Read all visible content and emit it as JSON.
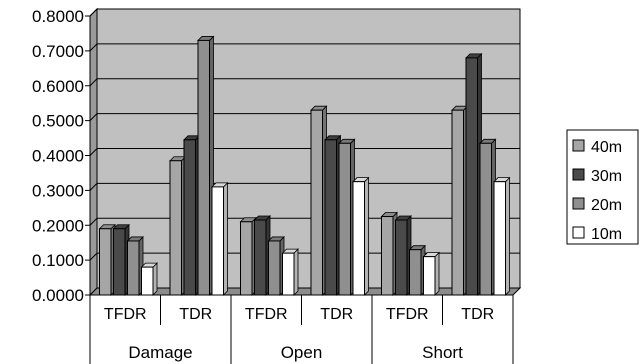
{
  "chart_data": {
    "type": "bar",
    "title": "",
    "xlabel": "",
    "ylabel": "",
    "ylim": [
      0,
      0.8
    ],
    "y_ticks": [
      "0.0000",
      "0.1000",
      "0.2000",
      "0.3000",
      "0.4000",
      "0.5000",
      "0.6000",
      "0.7000",
      "0.8000"
    ],
    "grid": true,
    "legend_position": "right",
    "groups": [
      "Damage",
      "Open",
      "Short"
    ],
    "categories": [
      "TFDR",
      "TDR",
      "TFDR",
      "TDR",
      "TFDR",
      "TDR"
    ],
    "series": [
      {
        "name": "40m",
        "color": "#a6a6a6",
        "values": [
          0.19,
          0.385,
          0.21,
          0.53,
          0.225,
          0.53
        ]
      },
      {
        "name": "30m",
        "color": "#4a4a4a",
        "values": [
          0.19,
          0.445,
          0.215,
          0.445,
          0.215,
          0.68
        ]
      },
      {
        "name": "20m",
        "color": "#8f8f8f",
        "values": [
          0.155,
          0.73,
          0.155,
          0.435,
          0.13,
          0.435
        ]
      },
      {
        "name": "10m",
        "color": "#ffffff",
        "values": [
          0.08,
          0.31,
          0.12,
          0.325,
          0.11,
          0.325
        ]
      }
    ]
  }
}
